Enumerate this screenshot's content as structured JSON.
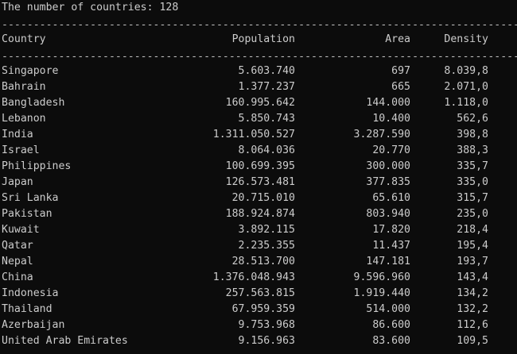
{
  "summary_line": "The number of countries: 128",
  "separator": "---------------------------------------------------------------------------------------",
  "columns": {
    "country": "Country",
    "population": "Population",
    "area": "Area",
    "density": "Density"
  },
  "rows": [
    {
      "country": "Singapore",
      "population": "5.603.740",
      "area": "697",
      "density": "8.039,8"
    },
    {
      "country": "Bahrain",
      "population": "1.377.237",
      "area": "665",
      "density": "2.071,0"
    },
    {
      "country": "Bangladesh",
      "population": "160.995.642",
      "area": "144.000",
      "density": "1.118,0"
    },
    {
      "country": "Lebanon",
      "population": "5.850.743",
      "area": "10.400",
      "density": "562,6"
    },
    {
      "country": "India",
      "population": "1.311.050.527",
      "area": "3.287.590",
      "density": "398,8"
    },
    {
      "country": "Israel",
      "population": "8.064.036",
      "area": "20.770",
      "density": "388,3"
    },
    {
      "country": "Philippines",
      "population": "100.699.395",
      "area": "300.000",
      "density": "335,7"
    },
    {
      "country": "Japan",
      "population": "126.573.481",
      "area": "377.835",
      "density": "335,0"
    },
    {
      "country": "Sri Lanka",
      "population": "20.715.010",
      "area": "65.610",
      "density": "315,7"
    },
    {
      "country": "Pakistan",
      "population": "188.924.874",
      "area": "803.940",
      "density": "235,0"
    },
    {
      "country": "Kuwait",
      "population": "3.892.115",
      "area": "17.820",
      "density": "218,4"
    },
    {
      "country": "Qatar",
      "population": "2.235.355",
      "area": "11.437",
      "density": "195,4"
    },
    {
      "country": "Nepal",
      "population": "28.513.700",
      "area": "147.181",
      "density": "193,7"
    },
    {
      "country": "China",
      "population": "1.376.048.943",
      "area": "9.596.960",
      "density": "143,4"
    },
    {
      "country": "Indonesia",
      "population": "257.563.815",
      "area": "1.919.440",
      "density": "134,2"
    },
    {
      "country": "Thailand",
      "population": "67.959.359",
      "area": "514.000",
      "density": "132,2"
    },
    {
      "country": "Azerbaijan",
      "population": "9.753.968",
      "area": "86.600",
      "density": "112,6"
    },
    {
      "country": "United Arab Emirates",
      "population": "9.156.963",
      "area": "83.600",
      "density": "109,5"
    }
  ]
}
